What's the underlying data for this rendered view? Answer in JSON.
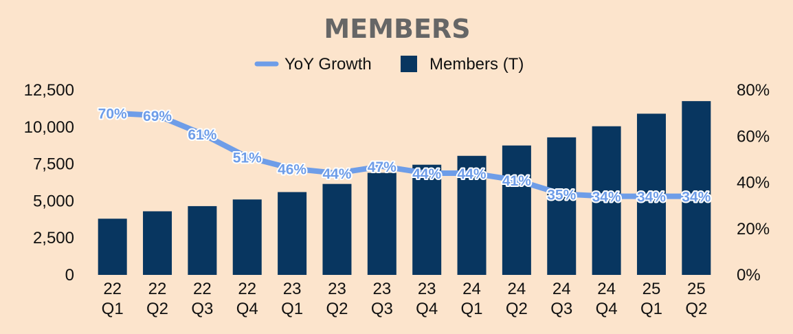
{
  "chart_data": {
    "type": "bar",
    "title": "MEMBERS",
    "categories": [
      [
        "22",
        "Q1"
      ],
      [
        "22",
        "Q2"
      ],
      [
        "22",
        "Q3"
      ],
      [
        "22",
        "Q4"
      ],
      [
        "23",
        "Q1"
      ],
      [
        "23",
        "Q2"
      ],
      [
        "23",
        "Q3"
      ],
      [
        "23",
        "Q4"
      ],
      [
        "24",
        "Q1"
      ],
      [
        "24",
        "Q2"
      ],
      [
        "24",
        "Q3"
      ],
      [
        "24",
        "Q4"
      ],
      [
        "25",
        "Q1"
      ],
      [
        "25",
        "Q2"
      ]
    ],
    "series": [
      {
        "name": "Members (T)",
        "type": "bar",
        "axis": "left",
        "color": "#083660",
        "values": [
          3800,
          4300,
          4650,
          5100,
          5600,
          6150,
          6900,
          7450,
          8050,
          8750,
          9300,
          10050,
          10900,
          11750
        ]
      },
      {
        "name": "YoY Growth",
        "type": "line",
        "axis": "right",
        "color": "#6e9de8",
        "values": [
          70,
          69,
          61,
          51,
          46,
          44,
          47,
          44,
          44,
          41,
          35,
          34,
          34,
          34
        ],
        "labels": [
          "70%",
          "69%",
          "61%",
          "51%",
          "46%",
          "44%",
          "47%",
          "44%",
          "44%",
          "41%",
          "35%",
          "34%",
          "34%",
          "34%"
        ]
      }
    ],
    "y_left": {
      "ylim": [
        0,
        12500
      ],
      "ticks": [
        0,
        2500,
        5000,
        7500,
        10000,
        12500
      ],
      "tick_labels": [
        "0",
        "2,500",
        "5,000",
        "7,500",
        "10,000",
        "12,500"
      ]
    },
    "y_right": {
      "ylim": [
        0,
        80
      ],
      "ticks": [
        0,
        20,
        40,
        60,
        80
      ],
      "tick_labels": [
        "0%",
        "20%",
        "40%",
        "60%",
        "80%"
      ]
    },
    "legend": {
      "placement": "top-center",
      "items": [
        {
          "label": "YoY Growth",
          "marker": "line",
          "color": "#6e9de8"
        },
        {
          "label": "Members (T)",
          "marker": "box",
          "color": "#083660"
        }
      ]
    },
    "grid": false,
    "background": "#fce4cc"
  }
}
